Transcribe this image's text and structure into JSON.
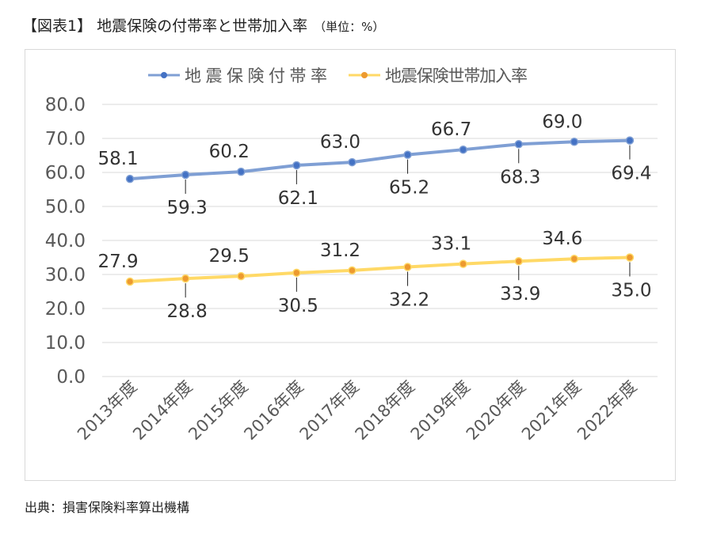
{
  "title": "【図表1】 地震保険の付帯率と世帯加入率",
  "unit": "（単位：%）",
  "source": "出典：損害保険料率算出機構",
  "colors": {
    "series1": "#7f9fd4",
    "series1_marker": "#4472c4",
    "series2": "#ffd966",
    "series2_marker": "#ed9a2f",
    "grid": "#d9d9d9",
    "text": "#595959"
  },
  "chart_data": {
    "type": "line",
    "categories": [
      "2013年度",
      "2014年度",
      "2015年度",
      "2016年度",
      "2017年度",
      "2018年度",
      "2019年度",
      "2020年度",
      "2021年度",
      "2022年度"
    ],
    "series": [
      {
        "name": "地震保険付帯率",
        "values": [
          58.1,
          59.3,
          60.2,
          62.1,
          63.0,
          65.2,
          66.7,
          68.3,
          69.0,
          69.4
        ],
        "labels": [
          "58.1",
          "59.3",
          "60.2",
          "62.1",
          "63.0",
          "65.2",
          "66.7",
          "68.3",
          "69.0",
          "69.4"
        ],
        "label_pos": [
          "above",
          "below",
          "above",
          "below",
          "above",
          "below",
          "above",
          "below",
          "above",
          "below"
        ]
      },
      {
        "name": "地震保険世帯加入率",
        "values": [
          27.9,
          28.8,
          29.5,
          30.5,
          31.2,
          32.2,
          33.1,
          33.9,
          34.6,
          35.0
        ],
        "labels": [
          "27.9",
          "28.8",
          "29.5",
          "30.5",
          "31.2",
          "32.2",
          "33.1",
          "33.9",
          "34.6",
          "35.0"
        ],
        "label_pos": [
          "above",
          "below",
          "above",
          "below",
          "above",
          "below",
          "above",
          "below",
          "above",
          "below"
        ]
      }
    ],
    "ylim": [
      0,
      80
    ],
    "yticks": [
      "0.0",
      "10.0",
      "20.0",
      "30.0",
      "40.0",
      "50.0",
      "60.0",
      "70.0",
      "80.0"
    ],
    "grid": true,
    "legend": "top-center"
  }
}
